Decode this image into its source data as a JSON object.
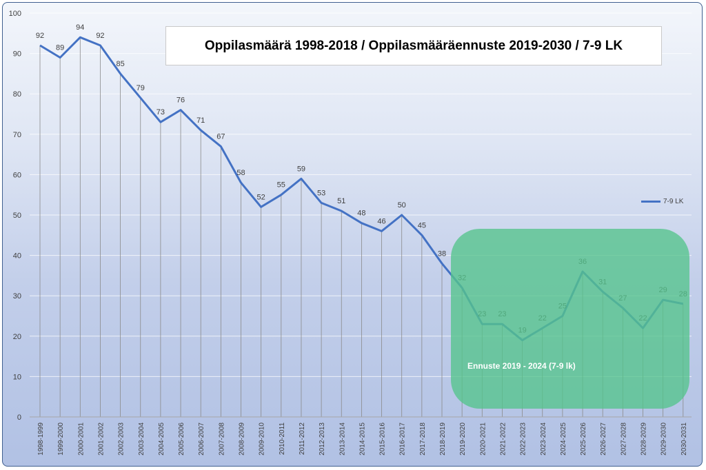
{
  "chart_data": {
    "type": "line",
    "title": "Oppilasmäärä 1998-2018 / Oppilasmääräennuste 2019-2030 / 7-9 LK",
    "categories": [
      "1998-1999",
      "1999-2000",
      "2000-2001",
      "2001-2002",
      "2002-2003",
      "2003-2004",
      "2004-2005",
      "2005-2006",
      "2006-2007",
      "2007-2008",
      "2008-2009",
      "2009-2010",
      "2010-2011",
      "2011-2012",
      "2012-2013",
      "2013-2014",
      "2014-2015",
      "2015-2016",
      "2016-2017",
      "2017-2018",
      "2018-2019",
      "2019-2020",
      "2020-2021",
      "2021-2022",
      "2022-2023",
      "2023-2024",
      "2024-2025",
      "2025-2026",
      "2026-2027",
      "2027-2028",
      "2028-2029",
      "2029-2030",
      "2030-2031"
    ],
    "series": [
      {
        "name": "7-9 LK",
        "color": "#4472c4",
        "values": [
          92,
          89,
          94,
          92,
          85,
          79,
          73,
          76,
          71,
          67,
          58,
          52,
          55,
          59,
          53,
          51,
          48,
          46,
          50,
          45,
          38,
          32,
          23,
          23,
          19,
          22,
          25,
          36,
          31,
          27,
          22,
          29,
          28
        ]
      }
    ],
    "ylim": [
      0,
      100
    ],
    "yticks": [
      0,
      10,
      20,
      30,
      40,
      50,
      60,
      70,
      80,
      90,
      100
    ],
    "grid": true,
    "legend_position": "right",
    "annotation": "Ennuste 2019 - 2024 (7-9 lk)",
    "annotation_color": "#54c48c"
  }
}
